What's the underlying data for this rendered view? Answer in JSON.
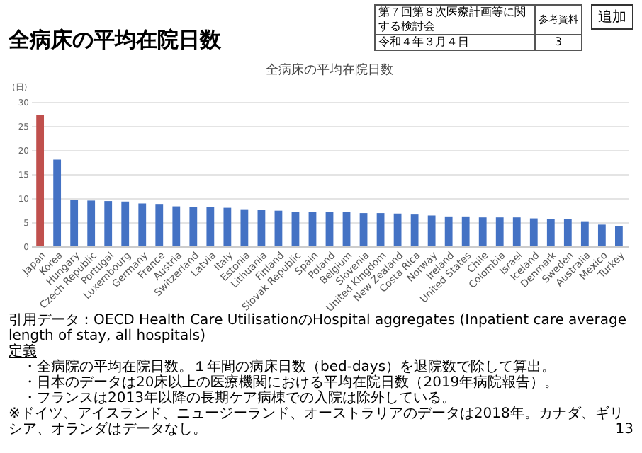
{
  "chart_data": {
    "type": "bar",
    "title": "全病床の平均在院日数",
    "subtitle": "全病床の平均在院日数",
    "ylabel": "(日)",
    "categories": [
      "Japan",
      "Korea",
      "Hungary",
      "Czech Republic",
      "Portugal",
      "Luxembourg",
      "Germany",
      "France",
      "Austria",
      "Switzerland",
      "Latvia",
      "Italy",
      "Estonia",
      "Lithuania",
      "Finland",
      "Slovak Republic",
      "Spain",
      "Poland",
      "Belgium",
      "Slovenia",
      "United Kingdom",
      "New Zealand",
      "Costa Rica",
      "Norway",
      "Ireland",
      "United States",
      "Chile",
      "Colombia",
      "Israel",
      "Iceland",
      "Denmark",
      "Sweden",
      "Australia",
      "Mexico",
      "Turkey"
    ],
    "values": [
      27.3,
      18.0,
      9.6,
      9.5,
      9.4,
      9.3,
      8.9,
      8.8,
      8.3,
      8.2,
      8.1,
      8.0,
      7.7,
      7.5,
      7.4,
      7.2,
      7.2,
      7.2,
      7.1,
      6.9,
      6.9,
      6.8,
      6.6,
      6.4,
      6.2,
      6.2,
      6.0,
      6.0,
      6.0,
      5.8,
      5.7,
      5.6,
      5.2,
      4.5,
      4.2
    ],
    "colors": [
      "#c0504d",
      "#4472c4",
      "#4472c4",
      "#4472c4",
      "#4472c4",
      "#4472c4",
      "#4472c4",
      "#4472c4",
      "#4472c4",
      "#4472c4",
      "#4472c4",
      "#4472c4",
      "#4472c4",
      "#4472c4",
      "#4472c4",
      "#4472c4",
      "#4472c4",
      "#4472c4",
      "#4472c4",
      "#4472c4",
      "#4472c4",
      "#4472c4",
      "#4472c4",
      "#4472c4",
      "#4472c4",
      "#4472c4",
      "#4472c4",
      "#4472c4",
      "#4472c4",
      "#4472c4",
      "#4472c4",
      "#4472c4",
      "#4472c4",
      "#4472c4",
      "#4472c4"
    ],
    "ylim": [
      0,
      30
    ],
    "yticks": [
      0,
      5,
      10,
      15,
      20,
      25,
      30
    ],
    "grid": "y",
    "annotations": [
      "第７回第８次医療計画等に関する検討会",
      "令和４年３月４日",
      "参考資料",
      "3",
      "追加",
      "引用データ：OECD Health Care UtilisationのHospital aggregates (Inpatient care average length of stay, all hospitals)",
      "定義",
      "・全病院の平均在院日数。１年間の病床日数（bed-days）を退院数で除して算出。",
      "・日本のデータは20床以上の医療機関における平均在院日数（2019年病院報告）。",
      "・フランスは2013年以降の長期ケア病棟での入院は除外している。",
      "※ドイツ、アイスランド、ニュージーランド、オーストラリアのデータは2018年。カナダ、ギリシア、オランダはデータなし。",
      "13"
    ]
  }
}
